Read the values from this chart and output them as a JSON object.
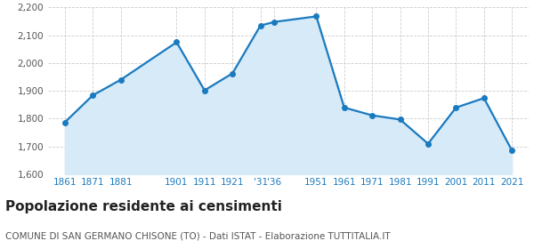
{
  "years": [
    1861,
    1871,
    1881,
    1901,
    1911,
    1921,
    1931,
    1936,
    1951,
    1961,
    1971,
    1981,
    1991,
    2001,
    2011,
    2021
  ],
  "population": [
    1787,
    1884,
    1940,
    2075,
    1902,
    1963,
    2135,
    2148,
    2168,
    1840,
    1812,
    1797,
    1710,
    1840,
    1874,
    1686
  ],
  "xtick_positions": [
    1861,
    1871,
    1881,
    1901,
    1911,
    1921,
    1931,
    1936,
    1951,
    1961,
    1971,
    1981,
    1991,
    2001,
    2011,
    2021
  ],
  "xtick_labels": [
    "1861",
    "1871",
    "1881",
    "1901",
    "1911",
    "1921",
    "'31",
    "'36",
    "1951",
    "1961",
    "1971",
    "1981",
    "1991",
    "2001",
    "2011",
    "2021"
  ],
  "line_color": "#1a7abf",
  "fill_color": "#d6eaf8",
  "marker_color": "#1a7abf",
  "background_color": "#ffffff",
  "grid_color": "#cccccc",
  "ylim": [
    1600,
    2200
  ],
  "xlim_left": 1855,
  "xlim_right": 2027,
  "yticks": [
    1600,
    1700,
    1800,
    1900,
    2000,
    2100,
    2200
  ],
  "title": "Popolazione residente ai censimenti",
  "subtitle": "COMUNE DI SAN GERMANO CHISONE (TO) - Dati ISTAT - Elaborazione TUTTITALIA.IT",
  "title_fontsize": 11,
  "subtitle_fontsize": 7.5,
  "xlabel_color": "#1a7abf",
  "ytick_color": "#555555",
  "tick_fontsize": 7.5,
  "linewidth": 1.6,
  "markersize": 4.0
}
